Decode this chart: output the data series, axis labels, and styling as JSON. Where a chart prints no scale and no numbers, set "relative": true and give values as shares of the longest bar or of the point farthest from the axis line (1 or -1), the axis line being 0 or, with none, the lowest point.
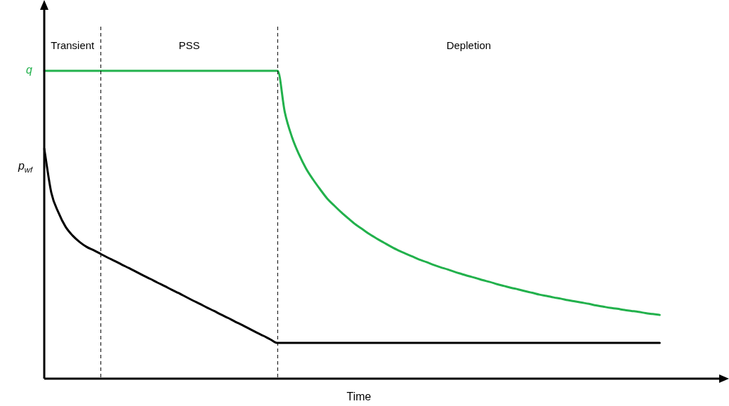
{
  "chart_data": {
    "type": "line",
    "relative": true,
    "xlabel": "Time",
    "legend": false,
    "marker": "none",
    "line_style": "solid",
    "tick_labels": false,
    "categories": [
      null,
      null,
      null,
      null,
      null,
      null,
      null,
      null,
      null,
      null,
      null,
      null,
      null,
      null,
      null,
      null,
      null,
      null,
      null,
      null,
      null,
      null,
      null,
      null,
      null,
      null,
      null,
      null,
      null,
      null,
      null,
      null,
      null,
      null,
      null,
      null,
      null,
      null,
      null,
      null,
      null,
      null,
      null,
      null,
      null,
      null,
      null,
      null,
      null,
      null,
      null,
      null,
      null,
      null,
      null,
      null,
      null,
      null,
      null,
      null,
      null,
      null,
      null,
      null,
      null,
      null,
      null,
      null,
      null,
      null,
      null,
      null,
      null,
      null,
      null,
      null,
      null,
      null,
      null,
      null,
      null,
      null,
      null,
      null,
      null,
      null,
      null,
      null,
      null,
      null,
      null,
      null,
      null,
      null,
      null,
      null,
      null
    ],
    "series": [
      {
        "name": "q",
        "color": "#22b14c",
        "values": [
          1,
          1,
          1,
          1,
          1,
          1,
          1,
          1,
          1,
          1,
          1,
          1,
          1,
          1,
          1,
          1,
          1,
          1,
          1,
          1,
          1,
          1,
          1,
          1,
          1,
          1,
          1,
          1,
          1,
          1,
          1,
          1,
          1,
          1,
          0.866,
          0.786,
          0.729,
          0.683,
          0.647,
          0.615,
          0.585,
          0.562,
          0.54,
          0.52,
          0.501,
          0.485,
          0.469,
          0.455,
          0.442,
          0.429,
          0.417,
          0.407,
          0.397,
          0.387,
          0.379,
          0.37,
          0.362,
          0.355,
          0.347,
          0.34,
          0.333,
          0.327,
          0.32,
          0.314,
          0.307,
          0.301,
          0.295,
          0.29,
          0.284,
          0.279,
          0.273,
          0.269,
          0.264,
          0.26,
          0.255,
          0.251,
          0.247,
          0.243,
          0.238,
          0.234,
          0.23,
          0.227,
          0.223,
          0.22,
          0.217,
          0.213,
          0.21,
          0.207,
          null,
          null,
          null,
          null,
          null,
          null,
          null,
          null,
          null
        ]
      },
      {
        "name": "p$_{wf}$",
        "color": "#000000",
        "values": [
          0.747,
          0.604,
          0.54,
          0.494,
          0.465,
          0.444,
          0.428,
          0.417,
          0.405,
          0.393,
          0.382,
          0.37,
          0.359,
          0.347,
          0.335,
          0.324,
          0.312,
          0.301,
          0.289,
          0.278,
          0.266,
          0.254,
          0.243,
          0.231,
          0.22,
          0.208,
          0.197,
          0.185,
          0.174,
          0.162,
          0.15,
          0.139,
          0.127,
          0.116,
          0.116,
          0.116,
          0.116,
          0.116,
          0.116,
          0.116,
          0.116,
          0.116,
          0.116,
          0.116,
          0.116,
          0.116,
          0.116,
          0.116,
          0.116,
          0.116,
          0.116,
          0.116,
          0.116,
          0.116,
          0.116,
          0.116,
          0.116,
          0.116,
          0.116,
          0.116,
          0.116,
          0.116,
          0.116,
          0.116,
          0.116,
          0.116,
          0.116,
          0.116,
          0.116,
          0.116,
          0.116,
          0.116,
          0.116,
          0.116,
          0.116,
          0.116,
          0.116,
          0.116,
          0.116,
          0.116,
          0.116,
          0.116,
          0.116,
          0.116,
          0.116,
          0.116,
          0.116,
          0.116,
          null,
          null,
          null,
          null,
          null,
          null,
          null,
          null,
          null
        ]
      }
    ],
    "annotations": [
      "Transient",
      "PSS",
      "Depletion"
    ]
  }
}
